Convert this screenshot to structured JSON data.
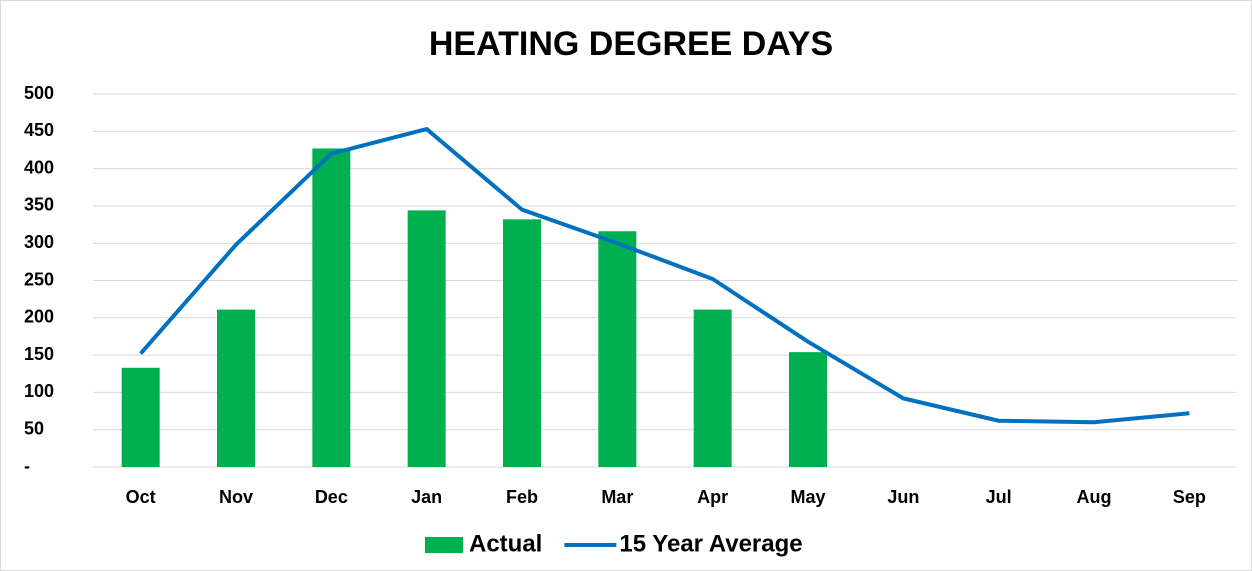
{
  "chart_data": {
    "type": "bar",
    "title": "HEATING DEGREE DAYS",
    "categories": [
      "Oct",
      "Nov",
      "Dec",
      "Jan",
      "Feb",
      "Mar",
      "Apr",
      "May",
      "Jun",
      "Jul",
      "Aug",
      "Sep"
    ],
    "series": [
      {
        "name": "Actual",
        "type": "bar",
        "color": "#00b050",
        "values": [
          133,
          211,
          427,
          344,
          332,
          316,
          211,
          154,
          null,
          null,
          null,
          null
        ]
      },
      {
        "name": "15 Year Average",
        "type": "line",
        "color": "#0070c0",
        "values": [
          152,
          298,
          420,
          453,
          345,
          300,
          252,
          168,
          92,
          62,
          60,
          72
        ]
      }
    ],
    "ylim": [
      0,
      500
    ],
    "yticks": [
      {
        "value": 0,
        "label": "-"
      },
      50,
      100,
      150,
      200,
      250,
      300,
      350,
      400,
      450,
      500
    ],
    "grid": true,
    "legend": "bottom"
  }
}
